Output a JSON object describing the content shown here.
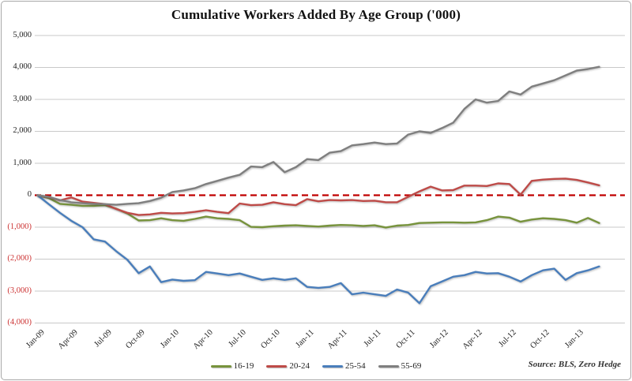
{
  "source_note": "Source: BLS, Zero Hedge",
  "colors": {
    "grid": "#c9c9c9",
    "zero_line": "#c00000",
    "negative_tick": "#cc3333",
    "frame_border": "#a8a8a8"
  },
  "chart_data": {
    "type": "line",
    "title": "Cumulative Workers Added By Age Group ('000)",
    "xlabel": "",
    "ylabel": "",
    "x_unit": "month",
    "x_start": "Jan-09",
    "x_end": "Mar-13",
    "x_tick_labels": [
      "Jan-09",
      "Apr-09",
      "Jul-09",
      "Oct-09",
      "Jan-10",
      "Apr-10",
      "Jul-10",
      "Oct-10",
      "Jan-11",
      "Apr-11",
      "Jul-11",
      "Oct-11",
      "Jan-12",
      "Apr-12",
      "Jul-12",
      "Oct-12",
      "Jan-13"
    ],
    "ylim": [
      -4000,
      5000
    ],
    "y_ticks": [
      5000,
      4000,
      3000,
      2000,
      1000,
      0,
      -1000,
      -2000,
      -3000,
      -4000
    ],
    "y_tick_labels": [
      "5,000",
      "4,000",
      "3,000",
      "2,000",
      "1,000",
      "0",
      "(1,000)",
      "(2,000)",
      "(3,000)",
      "(4,000)"
    ],
    "grid": true,
    "zero_line_style": "dashed-red",
    "legend_position": "bottom-center",
    "series": [
      {
        "name": "16-19",
        "color": "#77933c",
        "values": [
          0,
          -90,
          -270,
          -300,
          -330,
          -330,
          -310,
          -420,
          -570,
          -790,
          -780,
          -720,
          -780,
          -800,
          -740,
          -670,
          -720,
          -740,
          -780,
          -990,
          -1000,
          -970,
          -950,
          -940,
          -960,
          -980,
          -950,
          -930,
          -940,
          -960,
          -940,
          -1010,
          -950,
          -930,
          -870,
          -860,
          -850,
          -850,
          -860,
          -850,
          -780,
          -670,
          -700,
          -830,
          -760,
          -720,
          -740,
          -780,
          -860,
          -710,
          -870
        ]
      },
      {
        "name": "20-24",
        "color": "#be4b48",
        "values": [
          0,
          -60,
          -160,
          -70,
          -200,
          -240,
          -280,
          -430,
          -550,
          -620,
          -600,
          -550,
          -570,
          -560,
          -520,
          -470,
          -520,
          -560,
          -260,
          -310,
          -300,
          -220,
          -280,
          -310,
          -120,
          -190,
          -150,
          -160,
          -150,
          -180,
          -170,
          -220,
          -220,
          -50,
          120,
          270,
          150,
          160,
          300,
          300,
          290,
          370,
          350,
          20,
          450,
          490,
          510,
          520,
          480,
          400,
          310
        ]
      },
      {
        "name": "25-54",
        "color": "#4a7ebb",
        "values": [
          0,
          -280,
          -550,
          -800,
          -1000,
          -1380,
          -1450,
          -1750,
          -2020,
          -2440,
          -2230,
          -2720,
          -2640,
          -2680,
          -2660,
          -2400,
          -2450,
          -2500,
          -2450,
          -2550,
          -2650,
          -2600,
          -2650,
          -2600,
          -2870,
          -2900,
          -2870,
          -2750,
          -3100,
          -3050,
          -3100,
          -3150,
          -2950,
          -3050,
          -3380,
          -2850,
          -2700,
          -2550,
          -2500,
          -2400,
          -2450,
          -2440,
          -2550,
          -2700,
          -2500,
          -2350,
          -2300,
          -2650,
          -2440,
          -2350,
          -2230
        ]
      },
      {
        "name": "55-69",
        "color": "#7f7f7f",
        "values": [
          0,
          -50,
          -150,
          -220,
          -250,
          -270,
          -280,
          -300,
          -270,
          -250,
          -180,
          -80,
          100,
          150,
          220,
          350,
          450,
          550,
          640,
          900,
          880,
          1040,
          720,
          880,
          1130,
          1100,
          1330,
          1380,
          1560,
          1600,
          1650,
          1600,
          1620,
          1900,
          2000,
          1950,
          2100,
          2270,
          2700,
          3000,
          2900,
          2950,
          3250,
          3150,
          3400,
          3500,
          3600,
          3750,
          3900,
          3950,
          4020
        ]
      }
    ]
  }
}
